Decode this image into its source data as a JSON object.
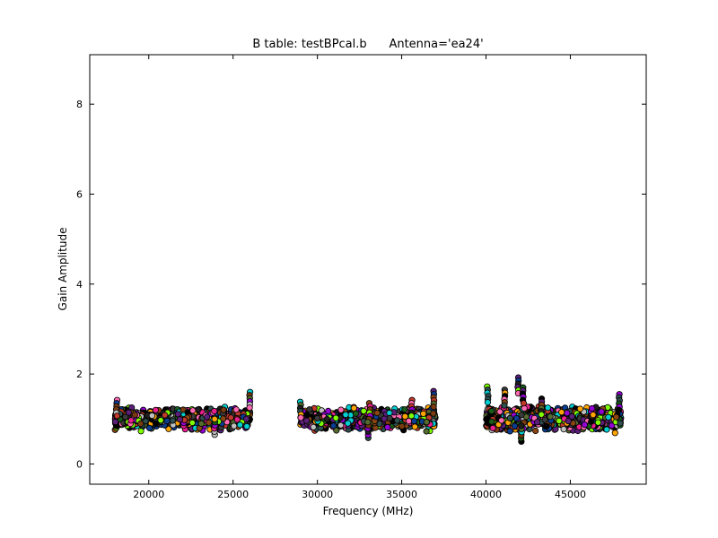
{
  "chart_data": {
    "type": "scatter",
    "title": "B table: testBPcal.b      Antenna='ea24'",
    "xlabel": "Frequency (MHz)",
    "ylabel": "Gain Amplitude",
    "xlim": [
      16500,
      49500
    ],
    "ylim": [
      -0.45,
      9.1
    ],
    "xticks": [
      20000,
      25000,
      30000,
      35000,
      40000,
      45000
    ],
    "yticks": [
      0,
      2,
      4,
      6,
      8
    ],
    "xtick_labels": [
      "20000",
      "25000",
      "30000",
      "35000",
      "40000",
      "45000"
    ],
    "ytick_labels": [
      "0",
      "2",
      "4",
      "6",
      "8"
    ],
    "grid": false,
    "legend": "none",
    "frequency_bands": [
      {
        "x_start": 18000,
        "x_end": 26000,
        "y_center": 1.0,
        "y_spread": 0.3
      },
      {
        "x_start": 29000,
        "x_end": 37000,
        "y_center": 1.0,
        "y_spread": 0.3
      },
      {
        "x_start": 40000,
        "x_end": 48000,
        "y_center": 1.0,
        "y_spread": 0.35
      }
    ],
    "outliers": [
      {
        "x": 18100,
        "y": 1.42
      },
      {
        "x": 26000,
        "y": 1.6
      },
      {
        "x": 29000,
        "y": 1.38
      },
      {
        "x": 33100,
        "y": 1.35
      },
      {
        "x": 35600,
        "y": 1.42
      },
      {
        "x": 36900,
        "y": 1.62
      },
      {
        "x": 40100,
        "y": 1.72
      },
      {
        "x": 41100,
        "y": 1.65
      },
      {
        "x": 41900,
        "y": 1.92
      },
      {
        "x": 42200,
        "y": 1.7
      },
      {
        "x": 42100,
        "y": 0.5
      },
      {
        "x": 43300,
        "y": 1.45
      },
      {
        "x": 47900,
        "y": 1.55
      },
      {
        "x": 23900,
        "y": 0.65
      },
      {
        "x": 33000,
        "y": 0.58
      }
    ],
    "point_colors": [
      "#000000",
      "#1f1f1f",
      "#3a3a3a",
      "#7a3b10",
      "#5b1f7a",
      "#0b3d91",
      "#1a5c1a",
      "#c0392b",
      "#e91e8c",
      "#ffa500",
      "#c0c0c0",
      "#00ced1",
      "#7fff00",
      "#ff69b4",
      "#8b4513",
      "#9400d3",
      "#2f4f4f",
      "#556b2f"
    ]
  }
}
